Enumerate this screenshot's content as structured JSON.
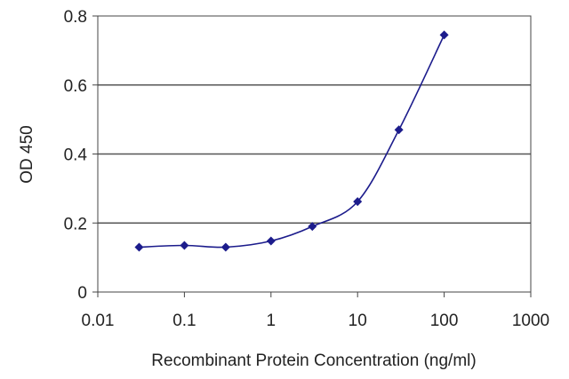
{
  "chart_data": {
    "type": "line",
    "title": "",
    "xlabel": "Recombinant Protein Concentration (ng/ml)",
    "ylabel": "OD 450",
    "xscale": "log",
    "xlim": [
      0.01,
      1000
    ],
    "ylim": [
      0,
      0.8
    ],
    "x_ticks": [
      "0.01",
      "0.1",
      "1",
      "10",
      "100",
      "1000"
    ],
    "y_ticks": [
      "0",
      "0.2",
      "0.4",
      "0.6",
      "0.8"
    ],
    "grid": "horizontal",
    "legend": "none",
    "series": [
      {
        "color": "#1c1c8c",
        "x": [
          0.03,
          0.1,
          0.3,
          1,
          3,
          10,
          30,
          100
        ],
        "y": [
          0.13,
          0.135,
          0.13,
          0.148,
          0.19,
          0.262,
          0.47,
          0.745
        ]
      }
    ]
  }
}
